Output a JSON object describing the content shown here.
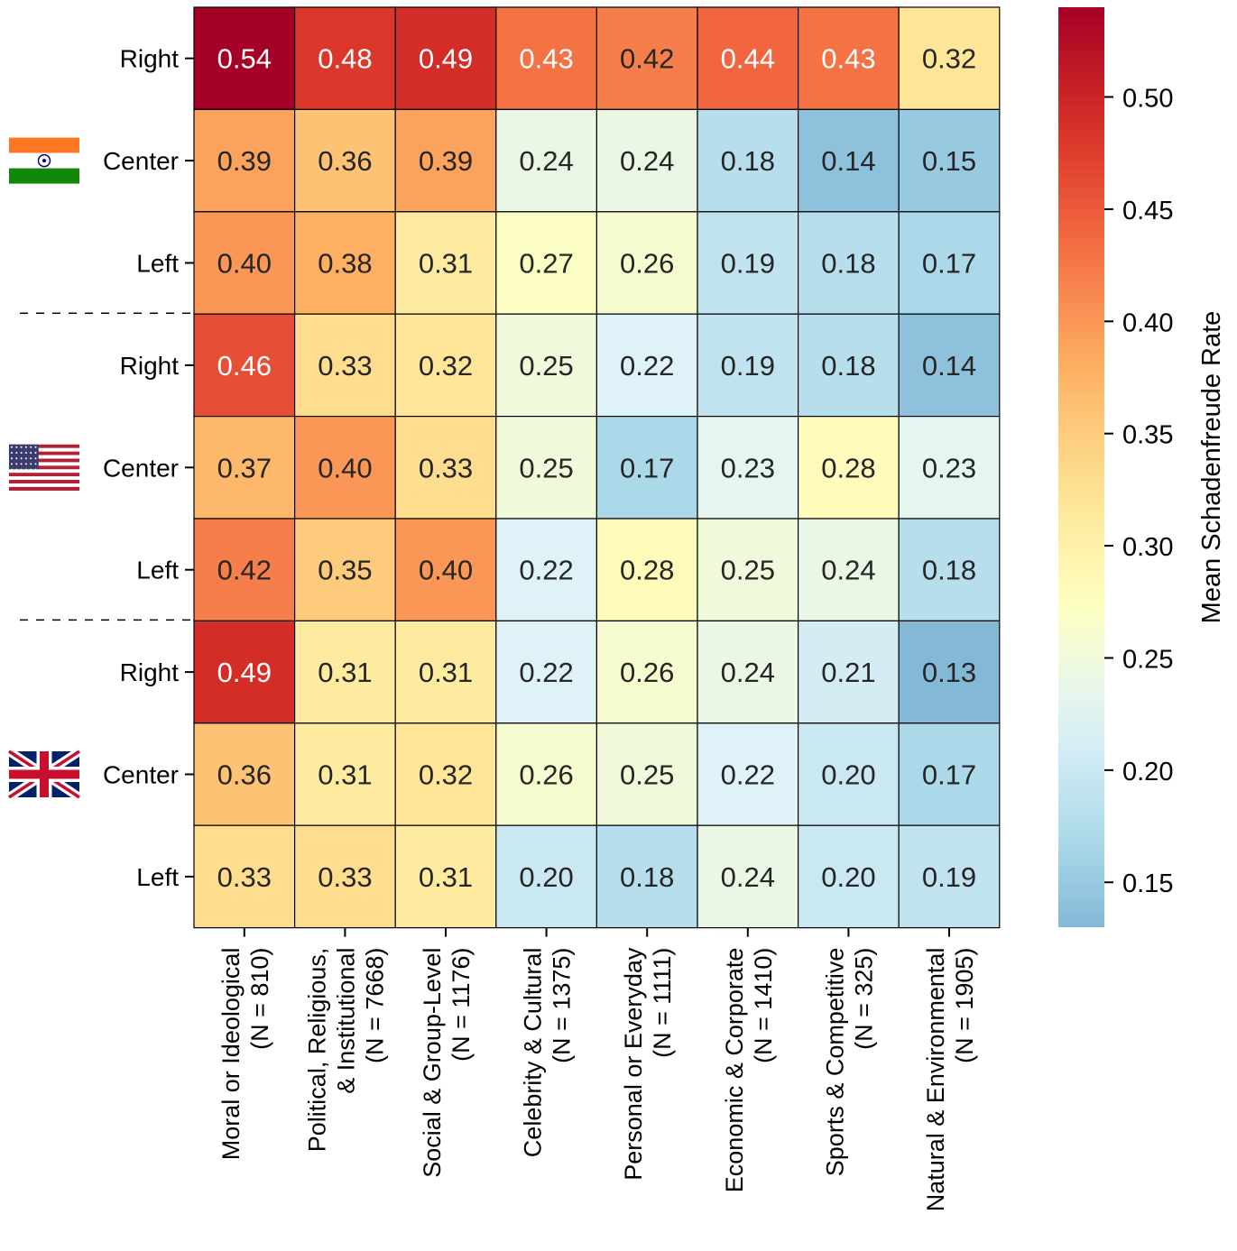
{
  "chart_data": {
    "type": "heatmap",
    "columns": [
      [
        "Moral or Ideological",
        "(N = 810)"
      ],
      [
        "Political, Religious,",
        "& Institutional",
        "(N = 7668)"
      ],
      [
        "Social & Group-Level",
        "(N = 1176)"
      ],
      [
        "Celebrity & Cultural",
        "(N = 1375)"
      ],
      [
        "Personal or Everyday",
        "(N = 1111)"
      ],
      [
        "Economic & Corporate",
        "(N = 1410)"
      ],
      [
        "Sports & Competitive",
        "(N = 325)"
      ],
      [
        "Natural & Environmental",
        "(N = 1905)"
      ]
    ],
    "groups": [
      {
        "flag": "india-flag",
        "rows": [
          "Right",
          "Center",
          "Left"
        ]
      },
      {
        "flag": "us-flag",
        "rows": [
          "Right",
          "Center",
          "Left"
        ]
      },
      {
        "flag": "uk-flag",
        "rows": [
          "Right",
          "Center",
          "Left"
        ]
      }
    ],
    "values": [
      [
        0.54,
        0.48,
        0.49,
        0.43,
        0.42,
        0.44,
        0.43,
        0.32
      ],
      [
        0.39,
        0.36,
        0.39,
        0.24,
        0.24,
        0.18,
        0.14,
        0.15
      ],
      [
        0.4,
        0.38,
        0.31,
        0.27,
        0.26,
        0.19,
        0.18,
        0.17
      ],
      [
        0.46,
        0.33,
        0.32,
        0.25,
        0.22,
        0.19,
        0.18,
        0.14
      ],
      [
        0.37,
        0.4,
        0.33,
        0.25,
        0.17,
        0.23,
        0.28,
        0.23
      ],
      [
        0.42,
        0.35,
        0.4,
        0.22,
        0.28,
        0.25,
        0.24,
        0.18
      ],
      [
        0.49,
        0.31,
        0.31,
        0.22,
        0.26,
        0.24,
        0.21,
        0.13
      ],
      [
        0.36,
        0.31,
        0.32,
        0.26,
        0.25,
        0.22,
        0.2,
        0.17
      ],
      [
        0.33,
        0.33,
        0.31,
        0.2,
        0.18,
        0.24,
        0.2,
        0.19
      ]
    ],
    "colorbar": {
      "label": "Mean Schadenfreude Rate",
      "ticks": [
        "0.15",
        "0.20",
        "0.25",
        "0.30",
        "0.35",
        "0.40",
        "0.45",
        "0.50"
      ],
      "range": [
        0.13,
        0.54
      ],
      "center": 0.275,
      "colormap": "RdYlBu_r"
    }
  }
}
